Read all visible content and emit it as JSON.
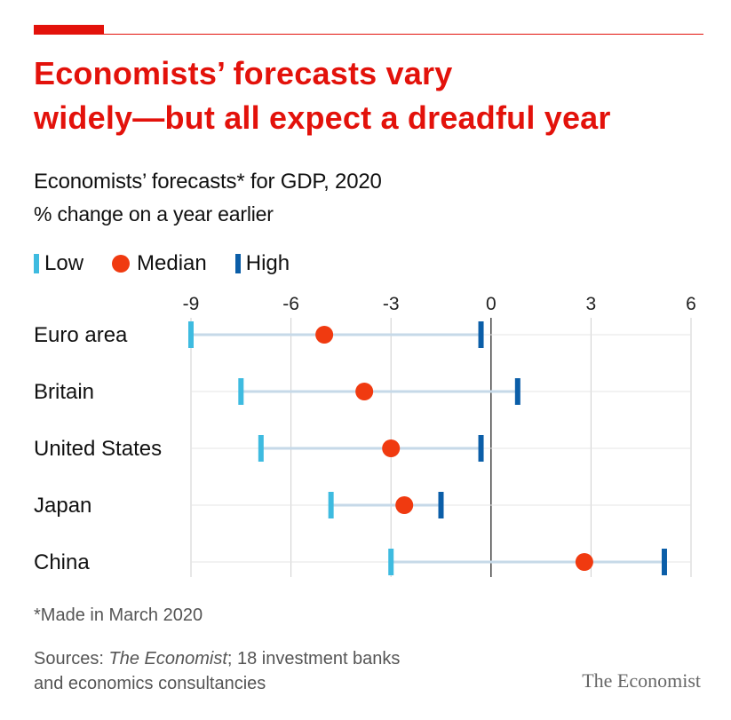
{
  "header": {
    "headline_line1": "Economists’ forecasts vary",
    "headline_line2": "widely—but all expect a dreadful year",
    "subtitle": "Economists’ forecasts* for GDP, 2020",
    "unit_label": "% change on a year earlier"
  },
  "legend": {
    "low": "Low",
    "median": "Median",
    "high": "High"
  },
  "colors": {
    "accent": "#e3120b",
    "low": "#3ebbe0",
    "median": "#f03a10",
    "high": "#0b5ea8",
    "range_line": "#c6d9e8",
    "grid": "#cfcfcf",
    "zero_line": "#444444"
  },
  "chart_data": {
    "type": "dot-range",
    "title": "Economists’ forecasts* for GDP, 2020",
    "ylabel": "% change on a year earlier",
    "x_ticks": [
      -9,
      -6,
      -3,
      0,
      3,
      6
    ],
    "x_tick_labels": [
      "-9",
      "-6",
      "-3",
      "0",
      "3",
      "6"
    ],
    "xlim": [
      -9,
      6
    ],
    "categories": [
      "Euro area",
      "Britain",
      "United States",
      "Japan",
      "China"
    ],
    "series": [
      {
        "name": "Low",
        "values": [
          -9.0,
          -7.5,
          -6.9,
          -4.8,
          -3.0
        ]
      },
      {
        "name": "Median",
        "values": [
          -5.0,
          -3.8,
          -3.0,
          -2.6,
          2.8
        ]
      },
      {
        "name": "High",
        "values": [
          -0.3,
          0.8,
          -0.3,
          -1.5,
          5.2
        ]
      }
    ]
  },
  "footer": {
    "footnote": "*Made in March 2020",
    "sources_prefix": "Sources: ",
    "sources_italic": "The Economist",
    "sources_rest": "; 18 investment banks and economics consultancies",
    "brand": "The Economist"
  }
}
